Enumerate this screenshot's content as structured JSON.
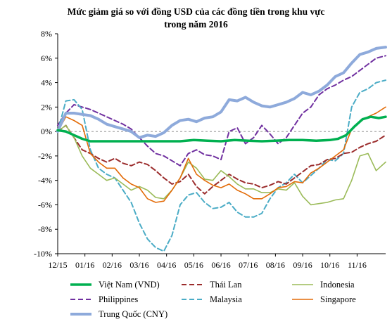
{
  "chart_data": {
    "type": "line",
    "title": "Mức giảm giá so với đồng USD của các đồng tiền trong khu vực",
    "subtitle": "trong năm 2016",
    "xlabel": "",
    "ylabel": "",
    "ylim": [
      -10,
      8
    ],
    "ytick_labels": [
      "8%",
      "6%",
      "4%",
      "2%",
      "0%",
      "-2%",
      "-4%",
      "-6%",
      "-8%",
      "-10%"
    ],
    "yticks": [
      8,
      6,
      4,
      2,
      0,
      -2,
      -4,
      -6,
      -8,
      -10
    ],
    "x_tick_labels": [
      "12/15",
      "01/16",
      "02/16",
      "03/16",
      "04/16",
      "05/16",
      "06/16",
      "07/16",
      "08/16",
      "09/16",
      "10/16",
      "11/16"
    ],
    "x_unit": "month index from 12/15",
    "xlim": [
      0,
      12.05
    ],
    "grid": "horizontal dashed at 0%",
    "legend_position": "bottom",
    "series": [
      {
        "name": "Việt Nam (VND)",
        "color": "#00b050",
        "dash": "solid",
        "x": [
          0,
          0.3,
          0.6,
          0.9,
          1.2,
          1.5,
          2,
          2.5,
          3,
          3.5,
          4,
          4.5,
          5,
          5.5,
          6,
          6.5,
          7,
          7.5,
          8,
          8.5,
          9,
          9.5,
          10,
          10.3,
          10.6,
          10.9,
          11.2,
          11.5,
          11.8,
          12.05
        ],
        "values": [
          0.1,
          0,
          -0.3,
          -0.6,
          -0.8,
          -0.8,
          -0.8,
          -0.8,
          -0.8,
          -0.8,
          -0.8,
          -0.8,
          -0.7,
          -0.75,
          -0.8,
          -0.7,
          -0.75,
          -0.8,
          -0.75,
          -0.7,
          -0.7,
          -0.75,
          -0.7,
          -0.6,
          -0.3,
          0.4,
          1,
          1.2,
          1.1,
          1.2
        ]
      },
      {
        "name": "Thái Lan",
        "color": "#9b2c2c",
        "dash": "dash",
        "x": [
          0,
          0.3,
          0.6,
          0.9,
          1.2,
          1.5,
          1.8,
          2.1,
          2.4,
          2.7,
          3,
          3.3,
          3.6,
          3.9,
          4.2,
          4.5,
          4.8,
          5.1,
          5.4,
          5.7,
          6,
          6.3,
          6.6,
          6.9,
          7.2,
          7.5,
          7.8,
          8.1,
          8.4,
          8.7,
          9,
          9.3,
          9.6,
          9.9,
          10.2,
          10.5,
          10.8,
          11.1,
          11.4,
          11.7,
          12.05
        ],
        "values": [
          0,
          0.5,
          -0.5,
          -1.5,
          -1.8,
          -2.2,
          -2.5,
          -2.2,
          -2.6,
          -2.8,
          -2.5,
          -2.7,
          -3.2,
          -3.8,
          -4.3,
          -4.1,
          -3.5,
          -4.5,
          -5.1,
          -4.5,
          -4.0,
          -3.5,
          -3.9,
          -4.2,
          -4.3,
          -4.6,
          -4.4,
          -4.1,
          -4.3,
          -3.8,
          -3.3,
          -2.8,
          -2.7,
          -2.3,
          -2.2,
          -1.8,
          -1.7,
          -1.3,
          -1.0,
          -0.8,
          -0.3
        ]
      },
      {
        "name": "Indonesia",
        "color": "#9bbb59",
        "dash": "solid-thin",
        "x": [
          0,
          0.3,
          0.6,
          0.9,
          1.2,
          1.5,
          1.8,
          2.1,
          2.4,
          2.7,
          3,
          3.3,
          3.6,
          3.9,
          4.2,
          4.5,
          4.8,
          5.1,
          5.4,
          5.7,
          6,
          6.3,
          6.6,
          6.9,
          7.2,
          7.5,
          7.8,
          8.1,
          8.4,
          8.7,
          9,
          9.3,
          9.6,
          9.9,
          10.2,
          10.5,
          10.8,
          11.1,
          11.4,
          11.7,
          12.05
        ],
        "values": [
          0,
          0.5,
          -0.5,
          -2.0,
          -3.0,
          -3.5,
          -4.0,
          -3.8,
          -4.3,
          -4.8,
          -4.5,
          -4.8,
          -5.4,
          -5.5,
          -4.8,
          -3.8,
          -2.5,
          -3.0,
          -3.9,
          -4.0,
          -3.2,
          -3.7,
          -4.3,
          -4.7,
          -4.7,
          -5.0,
          -5.0,
          -4.7,
          -4.8,
          -4.2,
          -5.3,
          -6.0,
          -5.9,
          -5.8,
          -5.6,
          -5.5,
          -4.0,
          -2.0,
          -1.8,
          -3.2,
          -2.5
        ]
      },
      {
        "name": "Philippines",
        "color": "#7030a0",
        "dash": "dash",
        "x": [
          0,
          0.3,
          0.6,
          0.9,
          1.2,
          1.5,
          1.8,
          2.1,
          2.4,
          2.7,
          3,
          3.3,
          3.6,
          3.9,
          4.2,
          4.5,
          4.8,
          5.1,
          5.4,
          5.7,
          6,
          6.3,
          6.6,
          6.9,
          7.2,
          7.5,
          7.8,
          8.1,
          8.4,
          8.7,
          9,
          9.3,
          9.6,
          9.9,
          10.2,
          10.5,
          10.8,
          11.1,
          11.4,
          11.7,
          12.05
        ],
        "values": [
          0.5,
          1.5,
          2.2,
          2.0,
          1.8,
          1.5,
          1.2,
          0.9,
          0.6,
          0.2,
          -0.5,
          -1.2,
          -1.8,
          -2.0,
          -2.4,
          -2.8,
          -1.8,
          -1.5,
          -1.9,
          -2.0,
          -2.3,
          0,
          0.3,
          -1.0,
          -0.5,
          0.5,
          -0.2,
          -1.0,
          -0.5,
          0.5,
          1.5,
          2.0,
          3.0,
          3.5,
          3.8,
          4.2,
          4.5,
          5.0,
          5.5,
          6.0,
          6.2
        ]
      },
      {
        "name": "Malaysia",
        "color": "#4bacc6",
        "dash": "dash",
        "x": [
          0,
          0.3,
          0.6,
          0.9,
          1.2,
          1.5,
          1.8,
          2.1,
          2.4,
          2.7,
          3,
          3.3,
          3.6,
          3.9,
          4.2,
          4.5,
          4.8,
          5.1,
          5.4,
          5.7,
          6,
          6.3,
          6.6,
          6.9,
          7.2,
          7.5,
          7.8,
          8.1,
          8.4,
          8.7,
          9,
          9.3,
          9.6,
          9.9,
          10.2,
          10.5,
          10.8,
          11.1,
          11.4,
          11.7,
          12.05
        ],
        "values": [
          0,
          2.5,
          2.6,
          1.8,
          -1.5,
          -3.0,
          -3.5,
          -3.8,
          -4.8,
          -5.8,
          -7.5,
          -8.8,
          -9.5,
          -9.8,
          -8.5,
          -6.0,
          -5.2,
          -5.0,
          -5.8,
          -6.3,
          -6.2,
          -5.8,
          -6.6,
          -7.0,
          -7.0,
          -6.7,
          -5.5,
          -4.6,
          -4.2,
          -3.5,
          -4.2,
          -3.6,
          -3.0,
          -2.3,
          -2.4,
          -1.8,
          2.0,
          3.2,
          3.5,
          4.0,
          4.2
        ]
      },
      {
        "name": "Singapore",
        "color": "#e36c09",
        "dash": "solid-thin",
        "x": [
          0,
          0.3,
          0.6,
          0.9,
          1.2,
          1.5,
          1.8,
          2.1,
          2.4,
          2.7,
          3,
          3.3,
          3.6,
          3.9,
          4.2,
          4.5,
          4.8,
          5.1,
          5.4,
          5.7,
          6,
          6.3,
          6.6,
          6.9,
          7.2,
          7.5,
          7.8,
          8.1,
          8.4,
          8.7,
          9,
          9.3,
          9.6,
          9.9,
          10.2,
          10.5,
          10.8,
          11.1,
          11.4,
          11.7,
          12.05
        ],
        "values": [
          0,
          1.2,
          0.9,
          0.5,
          -1.8,
          -2.5,
          -3.0,
          -3.0,
          -3.8,
          -4.3,
          -4.6,
          -5.5,
          -5.8,
          -5.7,
          -4.8,
          -3.8,
          -2.2,
          -3.5,
          -4.0,
          -4.4,
          -4.6,
          -4.3,
          -4.8,
          -5.1,
          -5.5,
          -5.5,
          -5.1,
          -4.6,
          -4.5,
          -4.1,
          -4.2,
          -3.4,
          -3.0,
          -2.5,
          -2.0,
          -1.5,
          0.2,
          0.8,
          1.2,
          1.5,
          2.0
        ]
      },
      {
        "name": "Trung Quốc (CNY)",
        "color": "#8eaadb",
        "dash": "solid-thick",
        "x": [
          0,
          0.3,
          0.6,
          0.9,
          1.2,
          1.5,
          1.8,
          2.1,
          2.4,
          2.7,
          3,
          3.3,
          3.6,
          3.9,
          4.2,
          4.5,
          4.8,
          5.1,
          5.4,
          5.7,
          6,
          6.3,
          6.6,
          6.9,
          7.2,
          7.5,
          7.8,
          8.1,
          8.4,
          8.7,
          9,
          9.3,
          9.6,
          9.9,
          10.2,
          10.5,
          10.8,
          11.1,
          11.4,
          11.7,
          12.05
        ],
        "values": [
          0,
          1.5,
          1.5,
          1.4,
          1.3,
          1.0,
          0.6,
          0.4,
          0.2,
          0,
          -0.5,
          -0.3,
          -0.4,
          -0.1,
          0.5,
          0.9,
          1.0,
          0.8,
          1.1,
          1.2,
          1.6,
          2.6,
          2.5,
          2.8,
          2.4,
          2.1,
          2.0,
          2.2,
          2.4,
          2.7,
          3.2,
          3.0,
          3.3,
          3.8,
          4.5,
          4.8,
          5.6,
          6.3,
          6.5,
          6.8,
          6.9
        ]
      }
    ]
  }
}
